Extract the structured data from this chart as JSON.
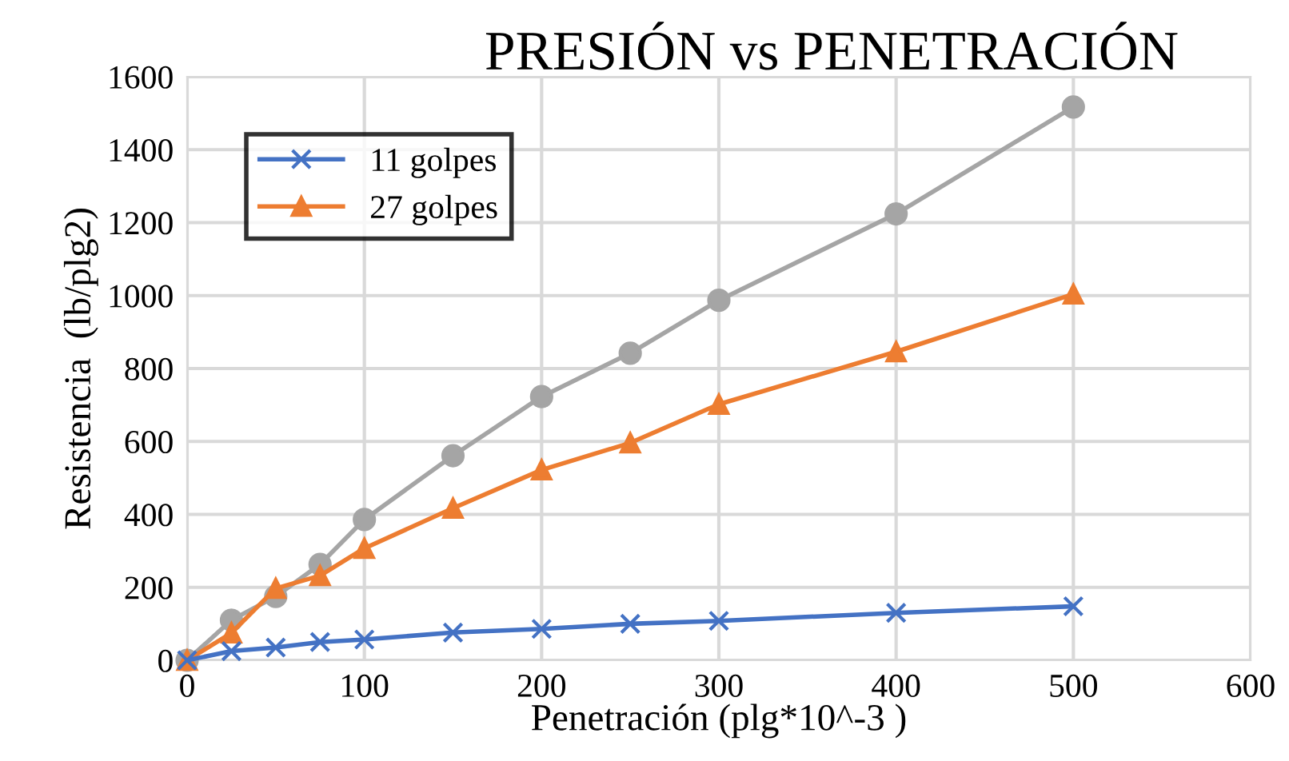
{
  "chart_data": {
    "type": "line",
    "title": "PRESIÓN vs PENETRACIÓN",
    "xlabel": "Penetración (plg*10^-3 )",
    "ylabel": "Resistencia  (lb/plg2)",
    "x": [
      0,
      25,
      50,
      75,
      100,
      150,
      200,
      250,
      300,
      400,
      500
    ],
    "series": [
      {
        "name": "11 golpes",
        "color": "#4472c4",
        "marker": "cross",
        "values": [
          0,
          25,
          35,
          50,
          57,
          76,
          86,
          100,
          108,
          130,
          148
        ]
      },
      {
        "name": "27 golpes",
        "color": "#ed7d31",
        "marker": "triangle",
        "values": [
          0,
          75,
          197,
          232,
          307,
          417,
          522,
          596,
          702,
          846,
          1004
        ]
      },
      {
        "color": "#a5a5a5",
        "marker": "circle",
        "values": [
          0,
          110,
          175,
          263,
          386,
          561,
          723,
          842,
          987,
          1224,
          1517
        ]
      }
    ],
    "xlim": [
      0,
      600
    ],
    "xticks": [
      0,
      100,
      200,
      300,
      400,
      500,
      600
    ],
    "ylim": [
      0,
      1600
    ],
    "yticks": [
      0,
      200,
      400,
      600,
      800,
      1000,
      1200,
      1400,
      1600
    ],
    "grid": true,
    "legend": "top left"
  }
}
